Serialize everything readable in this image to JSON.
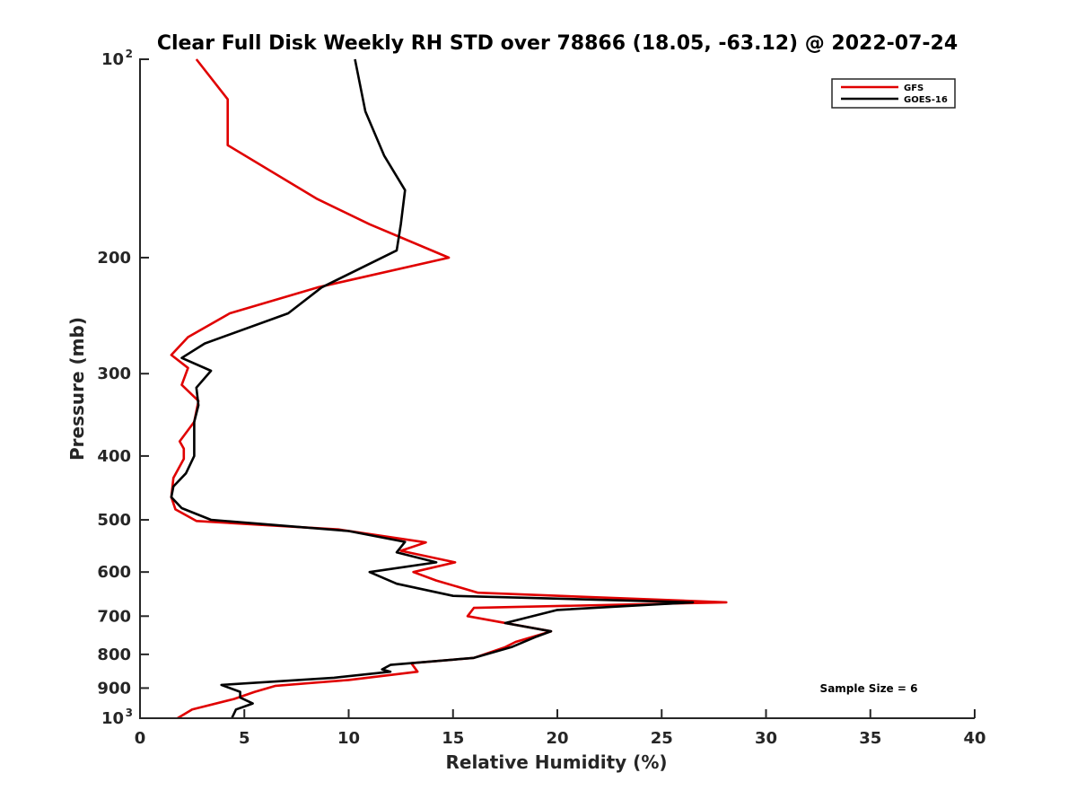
{
  "chart_data": {
    "type": "line",
    "title": "Clear Full Disk Weekly RH STD over 78866 (18.05, -63.12) @ 2022-07-24",
    "xlabel": "Relative Humidity (%)",
    "ylabel": "Pressure (mb)",
    "xlim": [
      0,
      40
    ],
    "ylim": [
      100,
      1000
    ],
    "y_scale": "log",
    "y_reversed": true,
    "grid": false,
    "x_ticks": [
      "0",
      "5",
      "10",
      "15",
      "20",
      "25",
      "30",
      "35",
      "40"
    ],
    "y_ticks": [
      {
        "value": 100,
        "base": "10",
        "exp": "2"
      },
      {
        "value": 200,
        "label": "200"
      },
      {
        "value": 300,
        "label": "300"
      },
      {
        "value": 400,
        "label": "400"
      },
      {
        "value": 500,
        "label": "500"
      },
      {
        "value": 600,
        "label": "600"
      },
      {
        "value": 700,
        "label": "700"
      },
      {
        "value": 800,
        "label": "800"
      },
      {
        "value": 900,
        "label": "900"
      },
      {
        "value": 1000,
        "base": "10",
        "exp": "3"
      }
    ],
    "legend_position": "top-right",
    "annotation": "Sample Size = 6",
    "series": [
      {
        "name": "GFS",
        "color": "#e00000",
        "points": [
          [
            2.7,
            100
          ],
          [
            4.2,
            115
          ],
          [
            4.2,
            135
          ],
          [
            8.5,
            163
          ],
          [
            11.0,
            178
          ],
          [
            14.8,
            200
          ],
          [
            8.5,
            222
          ],
          [
            4.3,
            243
          ],
          [
            2.3,
            264
          ],
          [
            1.5,
            281
          ],
          [
            2.3,
            294
          ],
          [
            2.0,
            312
          ],
          [
            2.8,
            330
          ],
          [
            2.6,
            355
          ],
          [
            1.9,
            380
          ],
          [
            2.1,
            390
          ],
          [
            2.1,
            404
          ],
          [
            1.6,
            432
          ],
          [
            1.5,
            462
          ],
          [
            1.7,
            482
          ],
          [
            2.7,
            502
          ],
          [
            9.5,
            517
          ],
          [
            13.7,
            541
          ],
          [
            12.5,
            557
          ],
          [
            15.1,
            580
          ],
          [
            13.1,
            600
          ],
          [
            14.2,
            618
          ],
          [
            16.2,
            645
          ],
          [
            28.1,
            667
          ],
          [
            16.0,
            680
          ],
          [
            15.7,
            700
          ],
          [
            19.7,
            738
          ],
          [
            18.0,
            766
          ],
          [
            17.5,
            780
          ],
          [
            16.0,
            810
          ],
          [
            13.0,
            825
          ],
          [
            13.3,
            850
          ],
          [
            10.0,
            875
          ],
          [
            6.5,
            893
          ],
          [
            5.5,
            912
          ],
          [
            4.5,
            935
          ],
          [
            2.5,
            970
          ],
          [
            1.8,
            1000
          ]
        ]
      },
      {
        "name": "GOES-16",
        "color": "#000000",
        "points": [
          [
            10.3,
            100
          ],
          [
            10.8,
            120
          ],
          [
            11.7,
            140
          ],
          [
            12.7,
            158
          ],
          [
            12.5,
            178
          ],
          [
            12.3,
            195
          ],
          [
            8.7,
            222
          ],
          [
            7.1,
            243
          ],
          [
            3.1,
            270
          ],
          [
            2.0,
            284
          ],
          [
            3.4,
            297
          ],
          [
            2.7,
            315
          ],
          [
            2.8,
            335
          ],
          [
            2.6,
            355
          ],
          [
            2.6,
            380
          ],
          [
            2.6,
            400
          ],
          [
            2.2,
            425
          ],
          [
            1.6,
            445
          ],
          [
            1.5,
            462
          ],
          [
            2.0,
            480
          ],
          [
            3.4,
            500
          ],
          [
            10.0,
            520
          ],
          [
            12.7,
            540
          ],
          [
            12.3,
            560
          ],
          [
            14.2,
            580
          ],
          [
            11.0,
            600
          ],
          [
            12.3,
            625
          ],
          [
            15.0,
            652
          ],
          [
            26.5,
            667
          ],
          [
            20.0,
            685
          ],
          [
            17.5,
            717
          ],
          [
            19.7,
            738
          ],
          [
            19.0,
            752
          ],
          [
            17.8,
            780
          ],
          [
            16.0,
            810
          ],
          [
            12.0,
            830
          ],
          [
            11.6,
            843
          ],
          [
            12.0,
            850
          ],
          [
            9.3,
            868
          ],
          [
            3.9,
            890
          ],
          [
            4.8,
            912
          ],
          [
            4.8,
            930
          ],
          [
            5.4,
            950
          ],
          [
            4.6,
            970
          ],
          [
            4.4,
            1000
          ]
        ]
      }
    ]
  }
}
